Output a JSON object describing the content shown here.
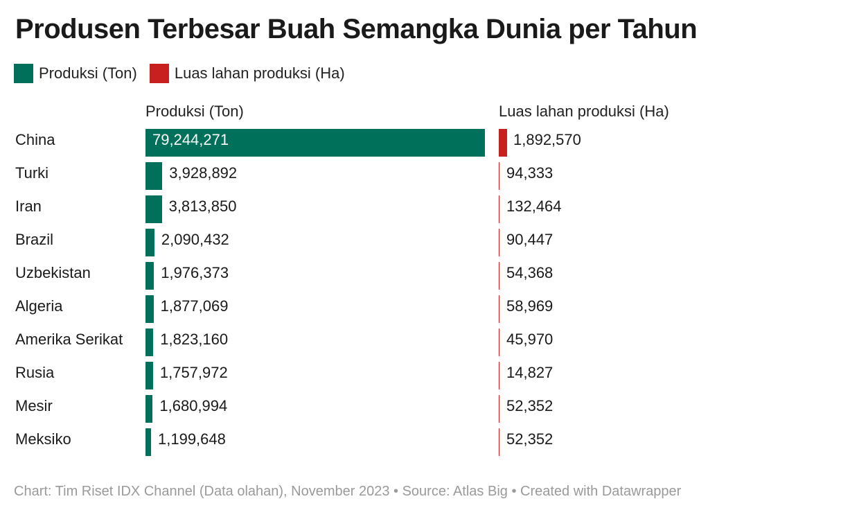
{
  "title": "Produsen Terbesar Buah Semangka Dunia per Tahun",
  "legend": [
    {
      "label": "Produksi (Ton)",
      "color": "#00705a"
    },
    {
      "label": "Luas lahan produksi (Ha)",
      "color": "#c8201e"
    }
  ],
  "columns": {
    "production_header": "Produksi (Ton)",
    "area_header": "Luas lahan produksi (Ha)"
  },
  "footer": "Chart: Tim Riset IDX Channel (Data olahan), November 2023 • Source: Atlas Big • Created with Datawrapper",
  "chart_data": {
    "type": "bar",
    "title": "Produsen Terbesar Buah Semangka Dunia per Tahun",
    "categories": [
      "China",
      "Turki",
      "Iran",
      "Brazil",
      "Uzbekistan",
      "Algeria",
      "Amerika Serikat",
      "Rusia",
      "Mesir",
      "Meksiko"
    ],
    "series": [
      {
        "name": "Produksi (Ton)",
        "color": "#00705a",
        "values": [
          79244271,
          3928892,
          3813850,
          2090432,
          1976373,
          1877069,
          1823160,
          1757972,
          1680994,
          1199648
        ],
        "labels": [
          "79,244,271",
          "3,928,892",
          "3,813,850",
          "2,090,432",
          "1,976,373",
          "1,877,069",
          "1,823,160",
          "1,757,972",
          "1,680,994",
          "1,199,648"
        ]
      },
      {
        "name": "Luas lahan produksi (Ha)",
        "color": "#c8201e",
        "values": [
          1892570,
          94333,
          132464,
          90447,
          54368,
          58969,
          45970,
          14827,
          52352,
          52352
        ],
        "labels": [
          "1,892,570",
          "94,333",
          "132,464",
          "90,447",
          "54,368",
          "58,969",
          "45,970",
          "14,827",
          "52,352",
          "52,352"
        ]
      }
    ],
    "legend": "top-left",
    "grid": false
  }
}
